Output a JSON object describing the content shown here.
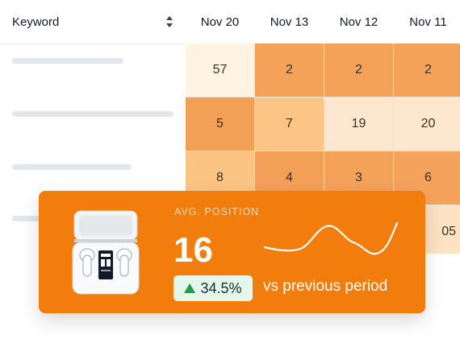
{
  "table": {
    "keyword_header": "Keyword",
    "dates": [
      "Nov 20",
      "Nov 13",
      "Nov 12",
      "Nov 11"
    ],
    "rows": [
      [
        "57",
        "2",
        "2",
        "2"
      ],
      [
        "5",
        "7",
        "19",
        "20"
      ],
      [
        "8",
        "4",
        "3",
        "6"
      ],
      [
        "",
        "",
        "",
        "05"
      ]
    ]
  },
  "metric_card": {
    "label": "AVG. POSITION",
    "value": "16",
    "change": "34.5%",
    "comparison": "vs previous period"
  },
  "colors": {
    "accent": "#f27d0c",
    "badge_bg": "#e4f7ea",
    "up_arrow": "#16a34a"
  },
  "icons": [
    "sort-icon",
    "triangle-up-icon"
  ]
}
